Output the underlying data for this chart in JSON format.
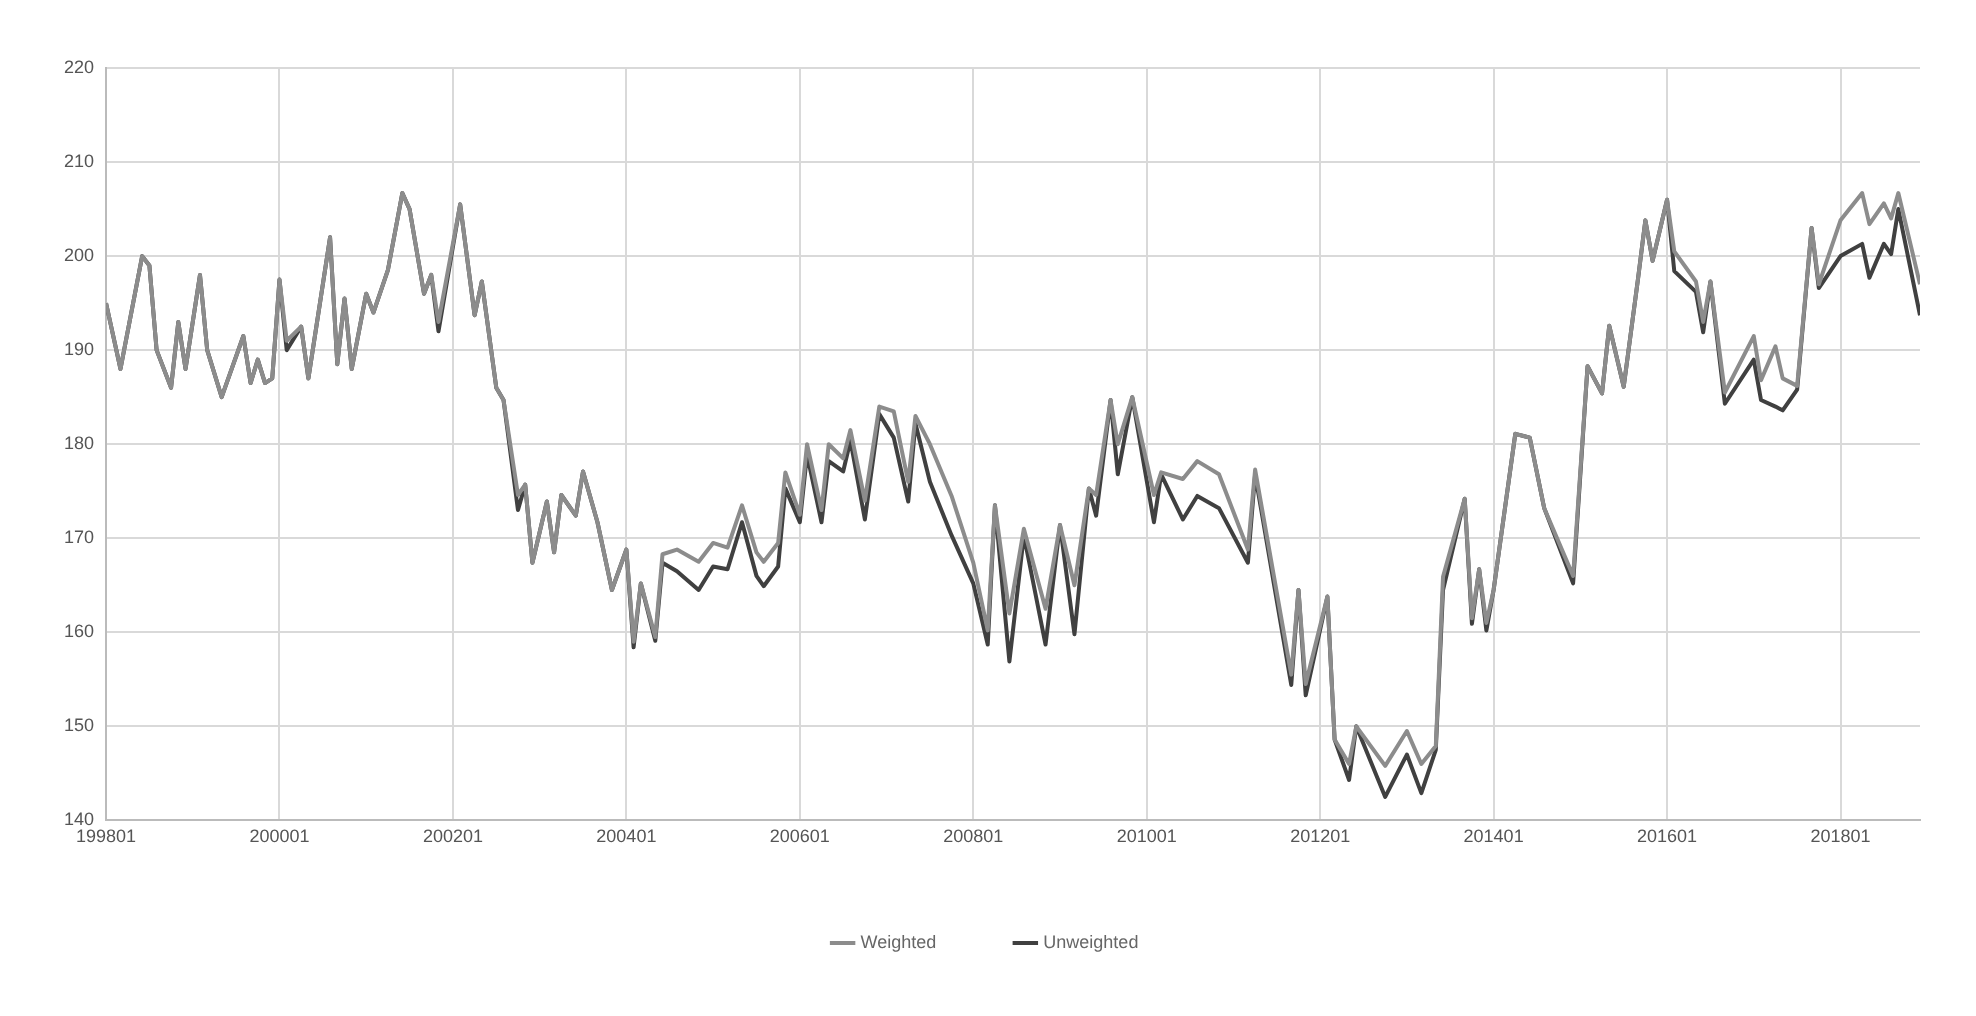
{
  "chart_data": {
    "type": "line",
    "x": [
      "1998-01",
      "1998-03",
      "1998-06",
      "1998-07",
      "1998-08",
      "1998-10",
      "1998-11",
      "1998-12",
      "1999-02",
      "1999-03",
      "1999-05",
      "1999-08",
      "1999-09",
      "1999-10",
      "1999-11",
      "1999-12",
      "2000-01",
      "2000-02",
      "2000-04",
      "2000-05",
      "2000-08",
      "2000-09",
      "2000-10",
      "2000-11",
      "2001-01",
      "2001-02",
      "2001-04",
      "2001-06",
      "2001-07",
      "2001-09",
      "2001-10",
      "2001-11",
      "2002-02",
      "2002-04",
      "2002-05",
      "2002-07",
      "2002-08",
      "2002-10",
      "2002-11",
      "2002-12",
      "2003-02",
      "2003-03",
      "2003-04",
      "2003-06",
      "2003-07",
      "2003-09",
      "2003-11",
      "2004-01",
      "2004-02",
      "2004-03",
      "2004-05",
      "2004-06",
      "2004-08",
      "2004-11",
      "2005-01",
      "2005-03",
      "2005-05",
      "2005-07",
      "2005-08",
      "2005-10",
      "2005-11",
      "2006-01",
      "2006-02",
      "2006-04",
      "2006-05",
      "2006-07",
      "2006-08",
      "2006-10",
      "2006-12",
      "2007-02",
      "2007-04",
      "2007-05",
      "2007-07",
      "2007-10",
      "2008-01",
      "2008-03",
      "2008-04",
      "2008-06",
      "2008-08",
      "2008-11",
      "2009-01",
      "2009-03",
      "2009-05",
      "2009-06",
      "2009-08",
      "2009-09",
      "2009-11",
      "2010-02",
      "2010-03",
      "2010-06",
      "2010-08",
      "2010-11",
      "2011-03",
      "2011-04",
      "2011-09",
      "2011-10",
      "2011-11",
      "2012-02",
      "2012-03",
      "2012-05",
      "2012-06",
      "2012-10",
      "2013-01",
      "2013-03",
      "2013-05",
      "2013-06",
      "2013-09",
      "2013-10",
      "2013-11",
      "2013-12",
      "2014-01",
      "2014-04",
      "2014-06",
      "2014-08",
      "2014-12",
      "2015-02",
      "2015-04",
      "2015-05",
      "2015-07",
      "2015-09",
      "2015-10",
      "2015-11",
      "2016-01",
      "2016-02",
      "2016-05",
      "2016-06",
      "2016-07",
      "2016-09",
      "2017-01",
      "2017-02",
      "2017-04",
      "2017-05",
      "2017-07",
      "2017-09",
      "2017-10",
      "2018-01",
      "2018-04",
      "2018-05",
      "2018-07",
      "2018-08",
      "2018-09",
      "2018-12"
    ],
    "series": [
      {
        "name": "Weighted",
        "color": "#8c8c8c",
        "values": [
          195,
          188,
          200,
          199,
          190,
          186,
          193,
          188,
          198,
          190,
          185,
          191.5,
          186.5,
          189,
          186.5,
          187,
          197.5,
          191,
          192.5,
          187,
          202,
          188.5,
          195.5,
          188,
          196,
          194,
          198.5,
          206.7,
          205,
          196,
          198,
          193,
          205.5,
          193.7,
          197.3,
          186,
          184.7,
          174.6,
          175.7,
          167.4,
          173.9,
          168.5,
          174.6,
          172.4,
          177.1,
          171.7,
          164.5,
          168.8,
          159,
          165.2,
          159.5,
          168.3,
          168.8,
          167.5,
          169.5,
          169,
          173.5,
          168.5,
          167.5,
          169.5,
          177,
          172.5,
          180,
          173,
          180,
          178.5,
          181.5,
          174,
          184,
          183.5,
          176,
          183,
          180,
          174.5,
          167.4,
          160.2,
          173.5,
          162,
          171,
          162.5,
          171.4,
          165,
          175.3,
          174.6,
          184.7,
          180,
          185,
          174.6,
          177,
          176.3,
          178.2,
          176.8,
          168.8,
          177.3,
          155.5,
          164.5,
          154.5,
          163.8,
          148.6,
          146,
          150,
          145.8,
          149.5,
          146,
          147.9,
          165.9,
          174.2,
          161.5,
          166.7,
          161,
          164.5,
          181.1,
          180.7,
          173.2,
          166,
          188.3,
          185.4,
          192.6,
          186.1,
          197.7,
          203.8,
          199.5,
          206,
          200.5,
          197.3,
          193,
          197.3,
          185.5,
          191.5,
          186.8,
          190.4,
          187,
          186.2,
          203,
          197,
          203.8,
          206.7,
          203.4,
          205.6,
          204,
          206.7,
          197
        ]
      },
      {
        "name": "Unweighted",
        "color": "#404040",
        "values": [
          195,
          188,
          200,
          199,
          190,
          186,
          193,
          188,
          198,
          190,
          185,
          191.5,
          186.5,
          189,
          186.5,
          187,
          197.5,
          190,
          192.5,
          187,
          202,
          188.5,
          195.5,
          188,
          196,
          194,
          198.5,
          206.7,
          205,
          196,
          198,
          192,
          205.5,
          193.7,
          197.3,
          186,
          184.7,
          173,
          175.7,
          167.4,
          173.9,
          168.5,
          174.6,
          172.4,
          177.1,
          171.7,
          164.5,
          168.8,
          158.4,
          165.2,
          159.1,
          167.4,
          166.5,
          164.5,
          167,
          166.7,
          171.7,
          166,
          164.9,
          167,
          175.3,
          171.7,
          178.9,
          171.7,
          178.2,
          177.1,
          180.4,
          172,
          183.2,
          180.7,
          173.9,
          182.2,
          176,
          170.3,
          165.2,
          158.7,
          173.5,
          156.9,
          170.3,
          158.7,
          171.4,
          159.8,
          175.3,
          172.4,
          184.7,
          176.8,
          185,
          171.7,
          176.8,
          172,
          174.5,
          173.2,
          167.4,
          176.8,
          154.4,
          164.5,
          153.3,
          163.8,
          148.6,
          144.3,
          150,
          142.5,
          147,
          142.9,
          147.5,
          164.5,
          174.2,
          160.9,
          166.7,
          160.2,
          164.5,
          181.1,
          180.7,
          173.2,
          165.2,
          188.3,
          185.4,
          192.6,
          186.1,
          197.7,
          203.8,
          199.5,
          206,
          198.4,
          196.2,
          191.9,
          197.3,
          184.3,
          189,
          184.7,
          184,
          183.6,
          185.8,
          203,
          196.6,
          200,
          201.3,
          197.7,
          201.3,
          200.2,
          205,
          193.7
        ]
      }
    ],
    "xlim": [
      "1998-01",
      "2018-12"
    ],
    "xticks": [
      {
        "value": "1998-01",
        "label": "199801"
      },
      {
        "value": "2000-01",
        "label": "200001"
      },
      {
        "value": "2002-01",
        "label": "200201"
      },
      {
        "value": "2004-01",
        "label": "200401"
      },
      {
        "value": "2006-01",
        "label": "200601"
      },
      {
        "value": "2008-01",
        "label": "200801"
      },
      {
        "value": "2010-01",
        "label": "201001"
      },
      {
        "value": "2012-01",
        "label": "201201"
      },
      {
        "value": "2014-01",
        "label": "201401"
      },
      {
        "value": "2016-01",
        "label": "201601"
      },
      {
        "value": "2018-01",
        "label": "201801"
      }
    ],
    "ylim": [
      140,
      220
    ],
    "yticks": [
      140,
      150,
      160,
      170,
      180,
      190,
      200,
      210,
      220
    ],
    "grid": true,
    "legend": "bottom",
    "marker": "none",
    "line_style": "solid"
  }
}
